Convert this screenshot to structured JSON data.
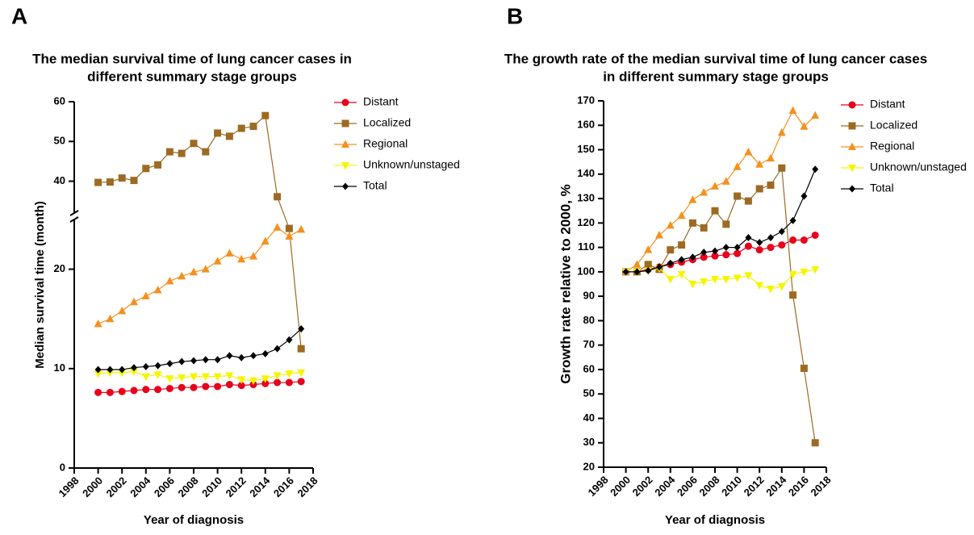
{
  "chart_data": [
    {
      "type": "line",
      "panel": "A",
      "title": [
        "The median survival time of lung cancer cases in",
        "different summary stage groups"
      ],
      "xlabel": "Year of diagnosis",
      "ylabel": "Median survival time (month)",
      "x": [
        2000,
        2001,
        2002,
        2003,
        2004,
        2005,
        2006,
        2007,
        2008,
        2009,
        2010,
        2011,
        2012,
        2013,
        2014,
        2015,
        2016,
        2017
      ],
      "xlim": [
        1998,
        2018
      ],
      "xticks": [
        1998,
        2000,
        2002,
        2004,
        2006,
        2008,
        2010,
        2012,
        2014,
        2016,
        2018
      ],
      "ylim": [
        0,
        60
      ],
      "ybreak": [
        25,
        32
      ],
      "yticks": [
        0,
        10,
        20,
        40,
        50,
        60
      ],
      "series": [
        {
          "name": "Distant",
          "color": "#e8001c",
          "marker": "circle",
          "values": [
            7.6,
            7.6,
            7.7,
            7.8,
            7.9,
            7.9,
            8.0,
            8.1,
            8.1,
            8.2,
            8.2,
            8.4,
            8.3,
            8.4,
            8.5,
            8.6,
            8.6,
            8.7
          ]
        },
        {
          "name": "Localized",
          "color": "#9c6a22",
          "marker": "square",
          "values": [
            39.7,
            39.8,
            40.8,
            40.2,
            43.2,
            44.1,
            47.4,
            47.0,
            49.5,
            47.4,
            52.1,
            51.3,
            53.3,
            53.8,
            56.5,
            36.1,
            24.1,
            12.0
          ]
        },
        {
          "name": "Regional",
          "color": "#f5901e",
          "marker": "triangle-up",
          "values": [
            14.5,
            15.0,
            15.8,
            16.7,
            17.3,
            17.9,
            18.8,
            19.3,
            19.7,
            20.0,
            20.8,
            21.6,
            21.0,
            21.3,
            22.8,
            24.2,
            23.3,
            24.0
          ]
        },
        {
          "name": "Unknown/unstaged",
          "color": "#f5f500",
          "marker": "triangle-down",
          "values": [
            9.5,
            9.6,
            9.6,
            9.7,
            9.2,
            9.4,
            9.0,
            9.1,
            9.2,
            9.2,
            9.2,
            9.3,
            8.9,
            8.8,
            9.0,
            9.3,
            9.5,
            9.6
          ]
        },
        {
          "name": "Total",
          "color": "#000000",
          "marker": "diamond",
          "values": [
            9.9,
            9.9,
            9.9,
            10.1,
            10.2,
            10.3,
            10.5,
            10.7,
            10.8,
            10.9,
            10.9,
            11.3,
            11.1,
            11.3,
            11.5,
            12.0,
            12.9,
            14.0
          ]
        }
      ]
    },
    {
      "type": "line",
      "panel": "B",
      "title": [
        "The growth rate of the median survival time of lung cancer cases",
        "in different summary stage  groups"
      ],
      "xlabel": "Year of diagnosis",
      "ylabel": "Growth rate relative to 2000, %",
      "x": [
        2000,
        2001,
        2002,
        2003,
        2004,
        2005,
        2006,
        2007,
        2008,
        2009,
        2010,
        2011,
        2012,
        2013,
        2014,
        2015,
        2016,
        2017
      ],
      "xlim": [
        1998,
        2018
      ],
      "xticks": [
        1998,
        2000,
        2002,
        2004,
        2006,
        2008,
        2010,
        2012,
        2014,
        2016,
        2018
      ],
      "ylim": [
        20,
        170
      ],
      "yticks": [
        20,
        30,
        40,
        50,
        60,
        70,
        80,
        90,
        100,
        110,
        120,
        130,
        140,
        150,
        160,
        170
      ],
      "series": [
        {
          "name": "Distant",
          "color": "#e8001c",
          "marker": "circle",
          "values": [
            100,
            100,
            101,
            102,
            103,
            104,
            105,
            106,
            106.5,
            107,
            107.5,
            110.5,
            109,
            110,
            111,
            113,
            113,
            115
          ]
        },
        {
          "name": "Localized",
          "color": "#9c6a22",
          "marker": "square",
          "values": [
            100,
            100,
            103,
            101,
            109,
            111,
            120,
            118,
            125,
            119.5,
            131,
            129,
            134,
            135.5,
            142.5,
            90.5,
            60.5,
            30
          ]
        },
        {
          "name": "Regional",
          "color": "#f5901e",
          "marker": "triangle-up",
          "values": [
            100,
            103,
            109,
            115,
            119,
            123,
            129.5,
            132.5,
            135,
            137,
            143,
            149,
            144,
            146.5,
            157,
            166,
            159.5,
            164
          ]
        },
        {
          "name": "Unknown/unstaged",
          "color": "#f5f500",
          "marker": "triangle-down",
          "values": [
            100,
            100,
            100.5,
            101.5,
            97,
            99,
            95,
            96,
            97,
            97,
            97.5,
            98.5,
            94.5,
            93,
            94,
            99,
            100,
            101
          ]
        },
        {
          "name": "Total",
          "color": "#000000",
          "marker": "diamond",
          "values": [
            100,
            100,
            100.5,
            102,
            103.5,
            105,
            106,
            108,
            108.5,
            110,
            110,
            114,
            112,
            114,
            116.5,
            121,
            131,
            142
          ]
        }
      ]
    }
  ]
}
